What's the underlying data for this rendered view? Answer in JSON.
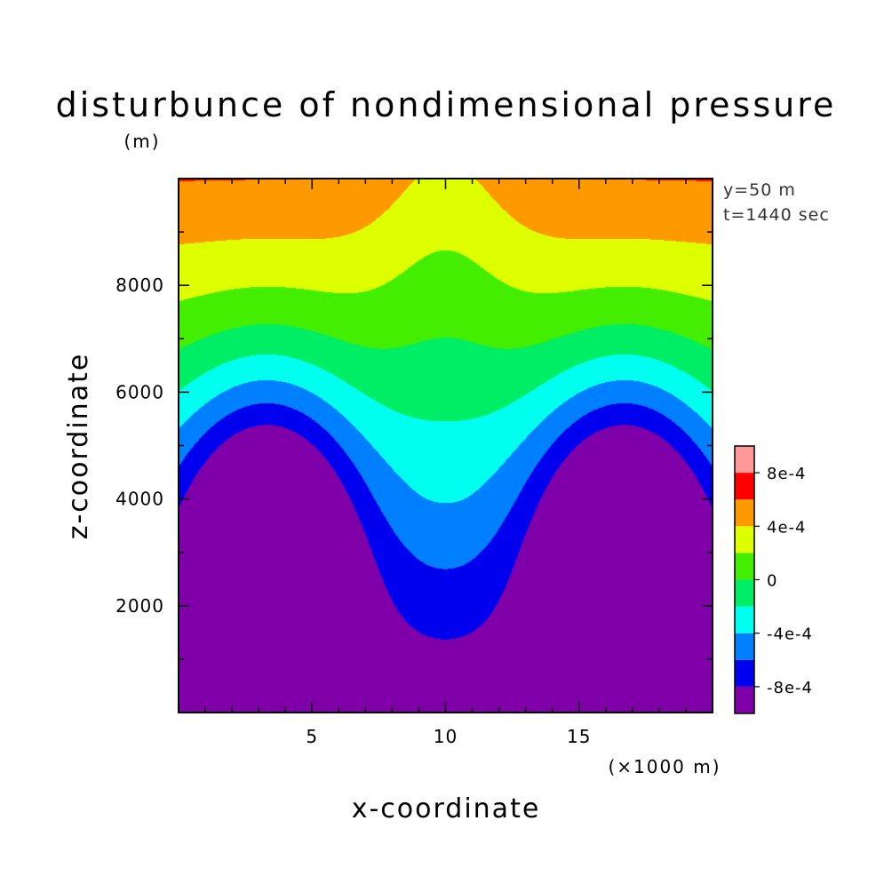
{
  "chart_data": {
    "type": "heatmap",
    "subtype": "filled-contour",
    "title": "disturbunce of nondimensional pressure",
    "ylabel": "z-coordinate",
    "yunit": "(m)",
    "xlabel": "x-coordinate",
    "xunit": "(×1000 m)",
    "annotations": [
      "y=50 m",
      "t=1440 sec"
    ],
    "x_range_km": [
      0,
      20
    ],
    "z_range_m": [
      0,
      10000
    ],
    "x_ticks": [
      5,
      10,
      15
    ],
    "z_ticks": [
      2000,
      4000,
      6000,
      8000
    ],
    "colorbar": {
      "levels": [
        -0.001,
        -0.0008,
        -0.0006,
        -0.0004,
        -0.0002,
        0,
        0.0002,
        0.0004,
        0.0006,
        0.0008,
        0.001
      ],
      "colors": [
        "#7f00a8",
        "#0000ee",
        "#0080ff",
        "#00ffee",
        "#00ee66",
        "#44ee00",
        "#ddff00",
        "#ff9900",
        "#ff0000",
        "#ff9999"
      ],
      "labels": [
        "-8e-4",
        "-4e-4",
        "0",
        "4e-4",
        "8e-4"
      ],
      "label_values": [
        -0.0008,
        -0.0004,
        0,
        0.0004,
        0.0008
      ]
    },
    "field": {
      "background": 5e-05,
      "vertical_gradient_per_km": 0.00016,
      "vertical_gradient_base_km": 6.5,
      "lows": [
        {
          "x_km": 3.3,
          "z_km": 3.1,
          "amplitude": -0.0012
        },
        {
          "x_km": 16.7,
          "z_km": 3.1,
          "amplitude": -0.0012
        }
      ],
      "dip_center": {
        "x_km": 10,
        "amplitude": -0.00025
      }
    }
  }
}
